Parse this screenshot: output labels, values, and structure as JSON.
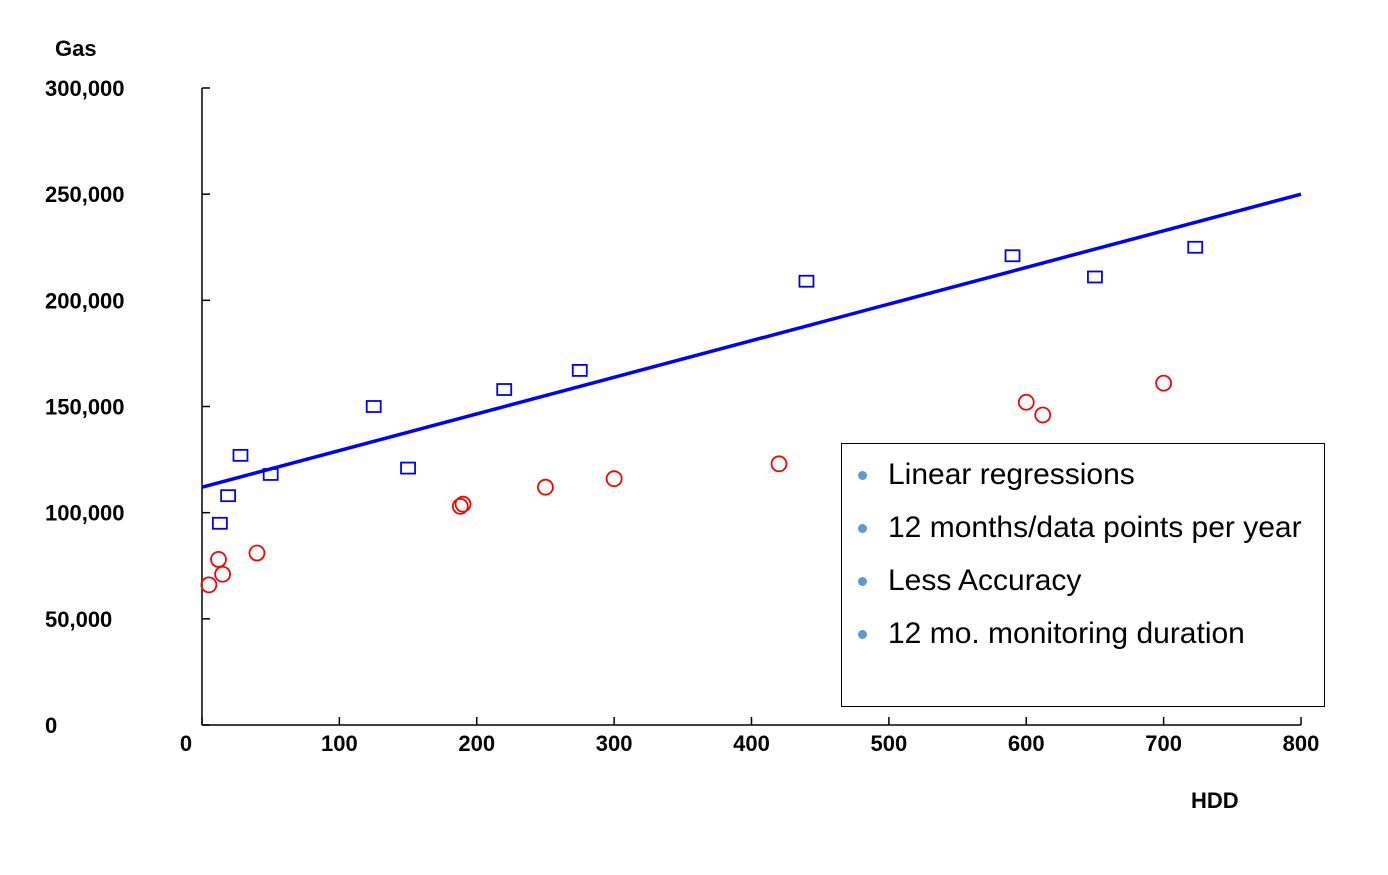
{
  "chart_data": {
    "type": "scatter",
    "title": "",
    "xlabel": "HDD",
    "ylabel": "Gas",
    "xlim": [
      0,
      800
    ],
    "ylim": [
      0,
      300000
    ],
    "x_ticks": [
      0,
      100,
      200,
      300,
      400,
      500,
      600,
      700,
      800
    ],
    "x_tick_labels": [
      "0",
      "100",
      "200",
      "300",
      "400",
      "500",
      "600",
      "700",
      "800"
    ],
    "y_ticks": [
      0,
      50000,
      100000,
      150000,
      200000,
      250000,
      300000
    ],
    "y_tick_labels": [
      "0",
      "50,000",
      "100,000",
      "150,000",
      "200,000",
      "250,000",
      "300,000"
    ],
    "grid": false,
    "series": [
      {
        "marker": "square",
        "color": "#0000ff",
        "points": [
          {
            "x": 13,
            "y": 95000
          },
          {
            "x": 19,
            "y": 108000
          },
          {
            "x": 28,
            "y": 127000
          },
          {
            "x": 50,
            "y": 118000
          },
          {
            "x": 125,
            "y": 150000
          },
          {
            "x": 150,
            "y": 121000
          },
          {
            "x": 220,
            "y": 158000
          },
          {
            "x": 275,
            "y": 167000
          },
          {
            "x": 440,
            "y": 209000
          },
          {
            "x": 590,
            "y": 221000
          },
          {
            "x": 650,
            "y": 211000
          },
          {
            "x": 723,
            "y": 225000
          }
        ],
        "regression": {
          "x1": 0,
          "y1": 112000,
          "x2": 800,
          "y2": 250000,
          "color": "#0000ff"
        }
      },
      {
        "marker": "circle",
        "color": "#ff0000",
        "points": [
          {
            "x": 5,
            "y": 66000
          },
          {
            "x": 12,
            "y": 78000
          },
          {
            "x": 15,
            "y": 71000
          },
          {
            "x": 40,
            "y": 81000
          },
          {
            "x": 188,
            "y": 103000
          },
          {
            "x": 190,
            "y": 104000
          },
          {
            "x": 250,
            "y": 112000
          },
          {
            "x": 300,
            "y": 116000
          },
          {
            "x": 420,
            "y": 123000
          },
          {
            "x": 600,
            "y": 152000
          },
          {
            "x": 612,
            "y": 146000
          },
          {
            "x": 700,
            "y": 161000
          }
        ]
      }
    ]
  },
  "legend": {
    "items": [
      {
        "text": "Linear regressions"
      },
      {
        "text": "12 months/data points per year"
      },
      {
        "text": "Less Accuracy"
      },
      {
        "text": "12 mo. monitoring duration"
      }
    ],
    "bullet_color": "#5b9bd5"
  }
}
